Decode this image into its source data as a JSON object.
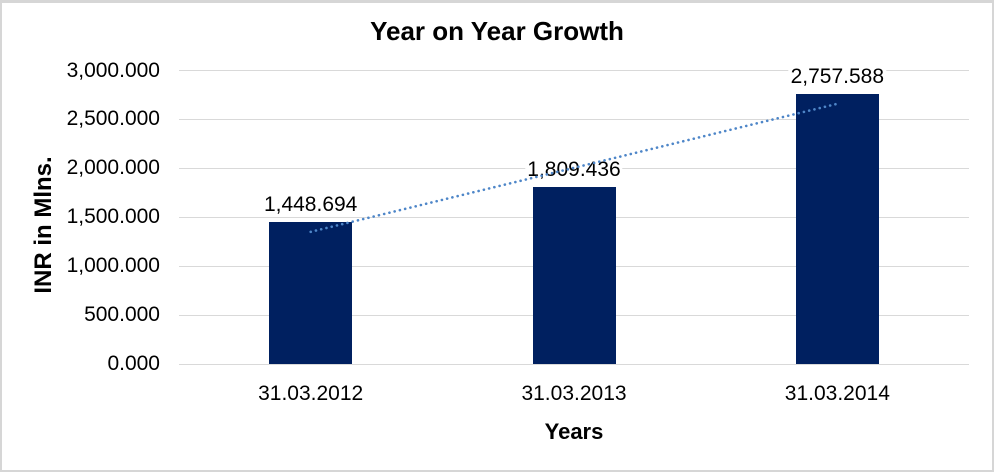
{
  "chart_data": {
    "type": "bar",
    "title": "Year on Year Growth",
    "xlabel": "Years",
    "ylabel": "INR in Mlns.",
    "categories": [
      "31.03.2012",
      "31.03.2013",
      "31.03.2014"
    ],
    "values": [
      1448.694,
      1809.436,
      2757.588
    ],
    "data_labels": [
      "1,448.694",
      "1,809.436",
      "2,757.588"
    ],
    "yticks": [
      {
        "value": 0,
        "label": "0.000"
      },
      {
        "value": 500,
        "label": "500.000"
      },
      {
        "value": 1000,
        "label": "1,000.000"
      },
      {
        "value": 1500,
        "label": "1,500.000"
      },
      {
        "value": 2000,
        "label": "2,000.000"
      },
      {
        "value": 2500,
        "label": "2,500.000"
      },
      {
        "value": 3000,
        "label": "3,000.000"
      }
    ],
    "ylim": [
      0,
      3000
    ],
    "grid": true,
    "legend": "none",
    "trendline": {
      "type": "linear",
      "style": "dotted",
      "color": "#4e86c8"
    },
    "colors": {
      "bar": "#002060",
      "gridline": "#d9d9d9",
      "text": "#000000",
      "border": "#d6d6d6",
      "background": "#ffffff"
    }
  }
}
